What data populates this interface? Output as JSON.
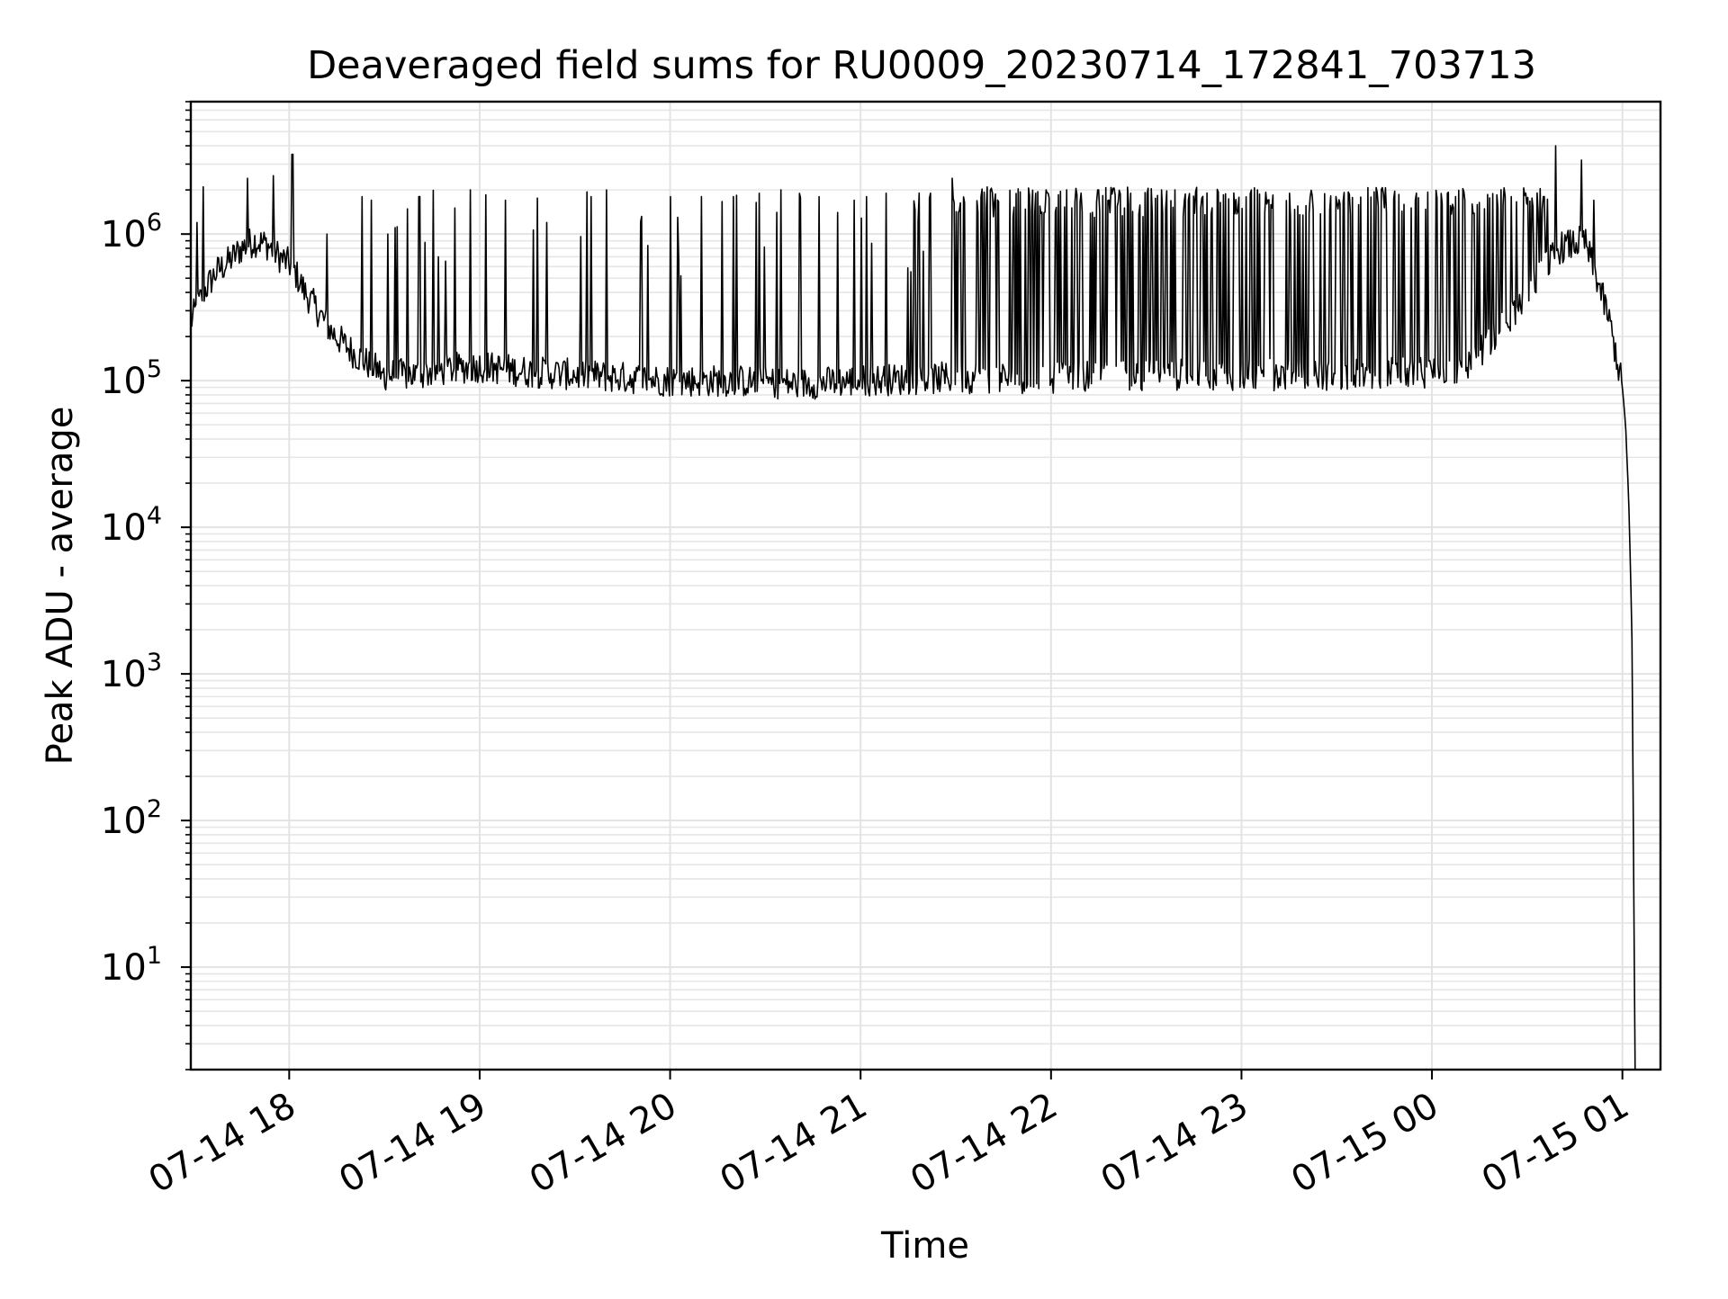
{
  "chart_data": {
    "type": "line",
    "title": "Deaveraged field sums for RU0009_20230714_172841_703713",
    "xlabel": "Time",
    "ylabel": "Peak ADU - average",
    "yscale": "log",
    "xlim": [
      "2023-07-14 17:29",
      "2023-07-15 01:12"
    ],
    "ylim": [
      2,
      8000000
    ],
    "grid": "major and minor",
    "x_ticks": [
      {
        "time": "2023-07-14 18:00",
        "label": "07-14 18"
      },
      {
        "time": "2023-07-14 19:00",
        "label": "07-14 19"
      },
      {
        "time": "2023-07-14 20:00",
        "label": "07-14 20"
      },
      {
        "time": "2023-07-14 21:00",
        "label": "07-14 21"
      },
      {
        "time": "2023-07-14 22:00",
        "label": "07-14 22"
      },
      {
        "time": "2023-07-14 23:00",
        "label": "07-14 23"
      },
      {
        "time": "2023-07-15 00:00",
        "label": "07-15 00"
      },
      {
        "time": "2023-07-15 01:00",
        "label": "07-15 01"
      }
    ],
    "y_ticks": [
      {
        "value": 10,
        "base": "10",
        "exp": "1"
      },
      {
        "value": 100,
        "base": "10",
        "exp": "2"
      },
      {
        "value": 1000,
        "base": "10",
        "exp": "3"
      },
      {
        "value": 10000,
        "base": "10",
        "exp": "4"
      },
      {
        "value": 100000,
        "base": "10",
        "exp": "5"
      },
      {
        "value": 1000000,
        "base": "10",
        "exp": "6"
      }
    ],
    "series": [
      {
        "color": "#000000",
        "points": [
          [
            "2023-07-14 17:29",
            250000
          ],
          [
            "2023-07-14 17:33",
            400000
          ],
          [
            "2023-07-14 17:37",
            550000
          ],
          [
            "2023-07-14 17:41",
            650000
          ],
          [
            "2023-07-14 17:45",
            800000
          ],
          [
            "2023-07-14 17:49",
            900000
          ],
          [
            "2023-07-14 17:53",
            850000
          ],
          [
            "2023-07-14 17:57",
            700000
          ],
          [
            "2023-07-14 18:01",
            600000
          ],
          [
            "2023-07-14 18:05",
            400000
          ],
          [
            "2023-07-14 18:09",
            300000
          ],
          [
            "2023-07-14 18:13",
            220000
          ],
          [
            "2023-07-14 18:17",
            180000
          ],
          [
            "2023-07-14 18:21",
            150000
          ],
          [
            "2023-07-14 18:25",
            130000
          ],
          [
            "2023-07-14 18:30",
            110000
          ],
          [
            "2023-07-14 18:40",
            110000
          ],
          [
            "2023-07-14 18:50",
            120000
          ],
          [
            "2023-07-14 19:00",
            125000
          ],
          [
            "2023-07-14 19:15",
            115000
          ],
          [
            "2023-07-14 19:30",
            110000
          ],
          [
            "2023-07-14 19:45",
            105000
          ],
          [
            "2023-07-14 20:00",
            100000
          ],
          [
            "2023-07-14 20:20",
            100000
          ],
          [
            "2023-07-14 20:40",
            95000
          ],
          [
            "2023-07-14 21:00",
            100000
          ],
          [
            "2023-07-14 21:30",
            105000
          ],
          [
            "2023-07-14 22:00",
            105000
          ],
          [
            "2023-07-14 22:30",
            110000
          ],
          [
            "2023-07-14 23:00",
            110000
          ],
          [
            "2023-07-14 23:30",
            110000
          ],
          [
            "2023-07-15 00:00",
            115000
          ],
          [
            "2023-07-15 00:10",
            120000
          ],
          [
            "2023-07-15 00:20",
            200000
          ],
          [
            "2023-07-15 00:30",
            400000
          ],
          [
            "2023-07-15 00:40",
            800000
          ],
          [
            "2023-07-15 00:48",
            900000
          ],
          [
            "2023-07-15 00:52",
            500000
          ],
          [
            "2023-07-15 00:56",
            250000
          ],
          [
            "2023-07-15 00:58",
            150000
          ],
          [
            "2023-07-15 01:00",
            90000
          ],
          [
            "2023-07-15 01:01",
            50000
          ],
          [
            "2023-07-15 01:02",
            15000
          ],
          [
            "2023-07-15 01:03",
            2000
          ],
          [
            "2023-07-15 01:04",
            2
          ]
        ],
        "spikes": [
          [
            "2023-07-14 17:31",
            1200000
          ],
          [
            "2023-07-14 17:33",
            2100000
          ],
          [
            "2023-07-14 17:47",
            2400000
          ],
          [
            "2023-07-14 17:55",
            2500000
          ],
          [
            "2023-07-14 18:01",
            3500000
          ],
          [
            "2023-07-14 18:12",
            1000000
          ],
          [
            "2023-07-14 18:23",
            1800000
          ],
          [
            "2023-07-14 18:26",
            1700000
          ],
          [
            "2023-07-14 18:31",
            1000000
          ],
          [
            "2023-07-14 18:41",
            1800000
          ],
          [
            "2023-07-14 18:47",
            700000
          ],
          [
            "2023-07-14 18:57",
            2000000
          ],
          [
            "2023-07-14 19:08",
            1700000
          ],
          [
            "2023-07-14 19:21",
            1200000
          ],
          [
            "2023-07-14 19:35",
            1800000
          ],
          [
            "2023-07-14 19:40",
            2000000
          ],
          [
            "2023-07-14 20:00",
            1800000
          ],
          [
            "2023-07-14 20:10",
            1800000
          ],
          [
            "2023-07-14 20:20",
            1800000
          ],
          [
            "2023-07-14 20:28",
            1900000
          ],
          [
            "2023-07-14 20:35",
            2000000
          ],
          [
            "2023-07-14 20:47",
            1800000
          ],
          [
            "2023-07-14 20:58",
            1700000
          ],
          [
            "2023-07-14 21:02",
            1800000
          ],
          [
            "2023-07-14 21:08",
            1900000
          ],
          [
            "2023-07-14 21:15",
            1700000
          ],
          [
            "2023-07-14 21:22",
            1900000
          ],
          [
            "2023-07-14 21:29",
            2400000
          ],
          [
            "2023-07-14 21:38",
            1800000
          ],
          [
            "2023-07-14 21:48",
            1900000
          ],
          [
            "2023-07-14 21:55",
            1900000
          ],
          [
            "2023-07-14 22:05",
            2000000
          ],
          [
            "2023-07-14 22:15",
            2000000
          ],
          [
            "2023-07-14 22:25",
            1900000
          ],
          [
            "2023-07-14 22:35",
            2000000
          ],
          [
            "2023-07-14 22:45",
            1900000
          ],
          [
            "2023-07-14 22:55",
            2000000
          ],
          [
            "2023-07-14 23:05",
            2000000
          ],
          [
            "2023-07-14 23:15",
            1900000
          ],
          [
            "2023-07-14 23:25",
            2000000
          ],
          [
            "2023-07-14 23:35",
            1900000
          ],
          [
            "2023-07-14 23:45",
            1900000
          ],
          [
            "2023-07-14 23:55",
            1900000
          ],
          [
            "2023-07-15 00:05",
            1900000
          ],
          [
            "2023-07-15 00:15",
            1800000
          ],
          [
            "2023-07-15 00:25",
            1800000
          ],
          [
            "2023-07-15 00:35",
            1800000
          ],
          [
            "2023-07-15 00:39",
            4000000
          ],
          [
            "2023-07-15 00:47",
            3200000
          ],
          [
            "2023-07-15 00:51",
            1700000
          ]
        ]
      }
    ]
  }
}
